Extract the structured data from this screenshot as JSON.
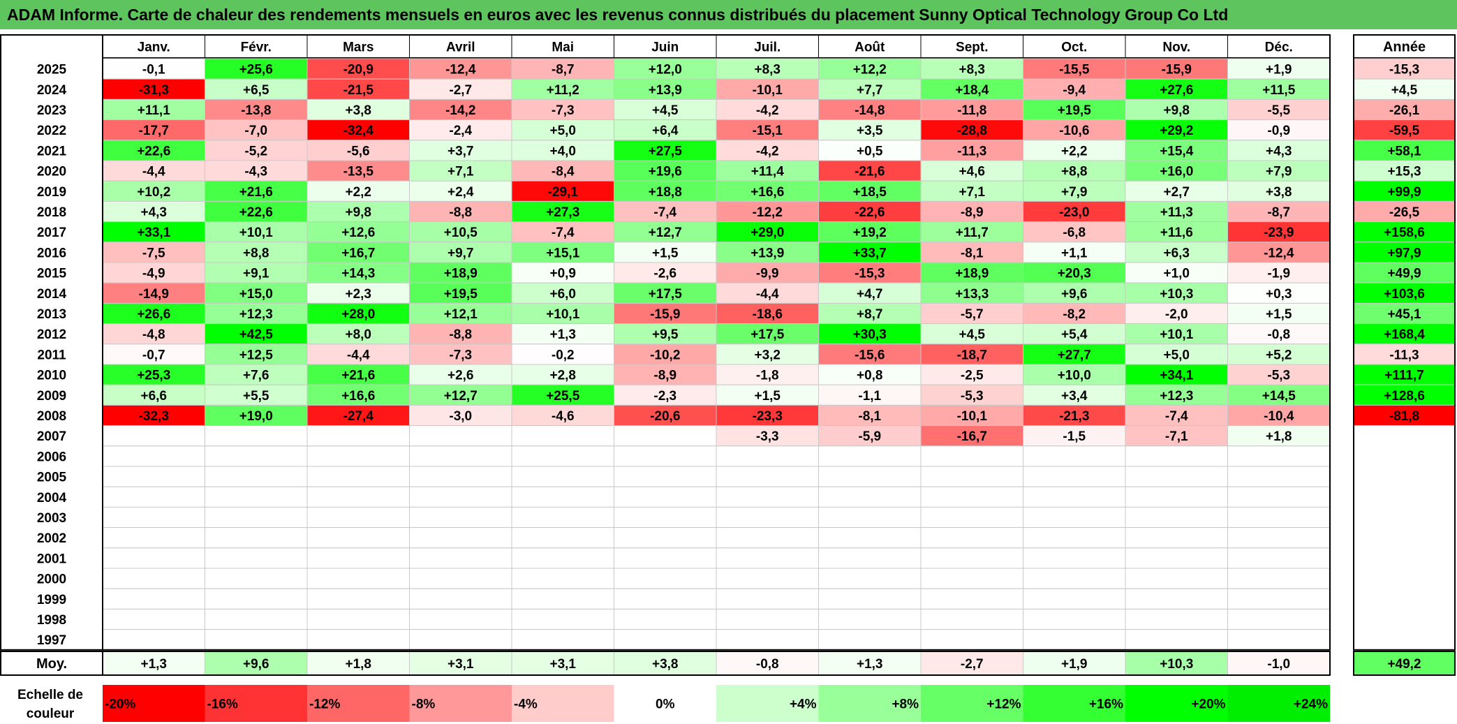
{
  "report_title": "ADAM Informe. Carte de chaleur des rendements mensuels en euros avec les revenus connus distribués du placement Sunny Optical Technology Group Co Ltd",
  "chart_data": {
    "type": "heatmap",
    "title": "ADAM Informe. Carte de chaleur des rendements mensuels en euros avec les revenus connus distribués du placement Sunny Optical Technology Group Co Ltd",
    "months": [
      "Janv.",
      "Févr.",
      "Mars",
      "Avril",
      "Mai",
      "Juin",
      "Juil.",
      "Août",
      "Sept.",
      "Oct.",
      "Nov.",
      "Déc."
    ],
    "year_header": "Année",
    "rows": [
      {
        "year": "2025",
        "values": [
          "-0,1",
          "+25,6",
          "-20,9",
          "-12,4",
          "-8,7",
          "+12,0",
          "+8,3",
          "+12,2",
          "+8,3",
          "-15,5",
          "-15,9",
          "+1,9"
        ],
        "annual": "-15,3"
      },
      {
        "year": "2024",
        "values": [
          "-31,3",
          "+6,5",
          "-21,5",
          "-2,7",
          "+11,2",
          "+13,9",
          "-10,1",
          "+7,7",
          "+18,4",
          "-9,4",
          "+27,6",
          "+11,5"
        ],
        "annual": "+4,5"
      },
      {
        "year": "2023",
        "values": [
          "+11,1",
          "-13,8",
          "+3,8",
          "-14,2",
          "-7,3",
          "+4,5",
          "-4,2",
          "-14,8",
          "-11,8",
          "+19,5",
          "+9,8",
          "-5,5"
        ],
        "annual": "-26,1"
      },
      {
        "year": "2022",
        "values": [
          "-17,7",
          "-7,0",
          "-32,4",
          "-2,4",
          "+5,0",
          "+6,4",
          "-15,1",
          "+3,5",
          "-28,8",
          "-10,6",
          "+29,2",
          "-0,9"
        ],
        "annual": "-59,5"
      },
      {
        "year": "2021",
        "values": [
          "+22,6",
          "-5,2",
          "-5,6",
          "+3,7",
          "+4,0",
          "+27,5",
          "-4,2",
          "+0,5",
          "-11,3",
          "+2,2",
          "+15,4",
          "+4,3"
        ],
        "annual": "+58,1"
      },
      {
        "year": "2020",
        "values": [
          "-4,4",
          "-4,3",
          "-13,5",
          "+7,1",
          "-8,4",
          "+19,6",
          "+11,4",
          "-21,6",
          "+4,6",
          "+8,8",
          "+16,0",
          "+7,9"
        ],
        "annual": "+15,3"
      },
      {
        "year": "2019",
        "values": [
          "+10,2",
          "+21,6",
          "+2,2",
          "+2,4",
          "-29,1",
          "+18,8",
          "+16,6",
          "+18,5",
          "+7,1",
          "+7,9",
          "+2,7",
          "+3,8"
        ],
        "annual": "+99,9"
      },
      {
        "year": "2018",
        "values": [
          "+4,3",
          "+22,6",
          "+9,8",
          "-8,8",
          "+27,3",
          "-7,4",
          "-12,2",
          "-22,6",
          "-8,9",
          "-23,0",
          "+11,3",
          "-8,7"
        ],
        "annual": "-26,5"
      },
      {
        "year": "2017",
        "values": [
          "+33,1",
          "+10,1",
          "+12,6",
          "+10,5",
          "-7,4",
          "+12,7",
          "+29,0",
          "+19,2",
          "+11,7",
          "-6,8",
          "+11,6",
          "-23,9"
        ],
        "annual": "+158,6"
      },
      {
        "year": "2016",
        "values": [
          "-7,5",
          "+8,8",
          "+16,7",
          "+9,7",
          "+15,1",
          "+1,5",
          "+13,9",
          "+33,7",
          "-8,1",
          "+1,1",
          "+6,3",
          "-12,4"
        ],
        "annual": "+97,9"
      },
      {
        "year": "2015",
        "values": [
          "-4,9",
          "+9,1",
          "+14,3",
          "+18,9",
          "+0,9",
          "-2,6",
          "-9,9",
          "-15,3",
          "+18,9",
          "+20,3",
          "+1,0",
          "-1,9"
        ],
        "annual": "+49,9"
      },
      {
        "year": "2014",
        "values": [
          "-14,9",
          "+15,0",
          "+2,3",
          "+19,5",
          "+6,0",
          "+17,5",
          "-4,4",
          "+4,7",
          "+13,3",
          "+9,6",
          "+10,3",
          "+0,3"
        ],
        "annual": "+103,6"
      },
      {
        "year": "2013",
        "values": [
          "+26,6",
          "+12,3",
          "+28,0",
          "+12,1",
          "+10,1",
          "-15,9",
          "-18,6",
          "+8,7",
          "-5,7",
          "-8,2",
          "-2,0",
          "+1,5"
        ],
        "annual": "+45,1"
      },
      {
        "year": "2012",
        "values": [
          "-4,8",
          "+42,5",
          "+8,0",
          "-8,8",
          "+1,3",
          "+9,5",
          "+17,5",
          "+30,3",
          "+4,5",
          "+5,4",
          "+10,1",
          "-0,8"
        ],
        "annual": "+168,4"
      },
      {
        "year": "2011",
        "values": [
          "-0,7",
          "+12,5",
          "-4,4",
          "-7,3",
          "-0,2",
          "-10,2",
          "+3,2",
          "-15,6",
          "-18,7",
          "+27,7",
          "+5,0",
          "+5,2"
        ],
        "annual": "-11,3"
      },
      {
        "year": "2010",
        "values": [
          "+25,3",
          "+7,6",
          "+21,6",
          "+2,6",
          "+2,8",
          "-8,9",
          "-1,8",
          "+0,8",
          "-2,5",
          "+10,0",
          "+34,1",
          "-5,3"
        ],
        "annual": "+111,7"
      },
      {
        "year": "2009",
        "values": [
          "+6,6",
          "+5,5",
          "+16,6",
          "+12,7",
          "+25,5",
          "-2,3",
          "+1,5",
          "-1,1",
          "-5,3",
          "+3,4",
          "+12,3",
          "+14,5"
        ],
        "annual": "+128,6"
      },
      {
        "year": "2008",
        "values": [
          "-32,3",
          "+19,0",
          "-27,4",
          "-3,0",
          "-4,6",
          "-20,6",
          "-23,3",
          "-8,1",
          "-10,1",
          "-21,3",
          "-7,4",
          "-10,4"
        ],
        "annual": "-81,8"
      },
      {
        "year": "2007",
        "values": [
          "",
          "",
          "",
          "",
          "",
          "",
          "-3,3",
          "-5,9",
          "-16,7",
          "-1,5",
          "-7,1",
          "+1,8"
        ],
        "annual": ""
      },
      {
        "year": "2006",
        "values": [
          "",
          "",
          "",
          "",
          "",
          "",
          "",
          "",
          "",
          "",
          "",
          ""
        ],
        "annual": ""
      },
      {
        "year": "2005",
        "values": [
          "",
          "",
          "",
          "",
          "",
          "",
          "",
          "",
          "",
          "",
          "",
          ""
        ],
        "annual": ""
      },
      {
        "year": "2004",
        "values": [
          "",
          "",
          "",
          "",
          "",
          "",
          "",
          "",
          "",
          "",
          "",
          ""
        ],
        "annual": ""
      },
      {
        "year": "2003",
        "values": [
          "",
          "",
          "",
          "",
          "",
          "",
          "",
          "",
          "",
          "",
          "",
          ""
        ],
        "annual": ""
      },
      {
        "year": "2002",
        "values": [
          "",
          "",
          "",
          "",
          "",
          "",
          "",
          "",
          "",
          "",
          "",
          ""
        ],
        "annual": ""
      },
      {
        "year": "2001",
        "values": [
          "",
          "",
          "",
          "",
          "",
          "",
          "",
          "",
          "",
          "",
          "",
          ""
        ],
        "annual": ""
      },
      {
        "year": "2000",
        "values": [
          "",
          "",
          "",
          "",
          "",
          "",
          "",
          "",
          "",
          "",
          "",
          ""
        ],
        "annual": ""
      },
      {
        "year": "1999",
        "values": [
          "",
          "",
          "",
          "",
          "",
          "",
          "",
          "",
          "",
          "",
          "",
          ""
        ],
        "annual": ""
      },
      {
        "year": "1998",
        "values": [
          "",
          "",
          "",
          "",
          "",
          "",
          "",
          "",
          "",
          "",
          "",
          ""
        ],
        "annual": ""
      },
      {
        "year": "1997",
        "values": [
          "",
          "",
          "",
          "",
          "",
          "",
          "",
          "",
          "",
          "",
          "",
          ""
        ],
        "annual": ""
      }
    ],
    "average": {
      "label": "Moy.",
      "values": [
        "+1,3",
        "+9,6",
        "+1,8",
        "+3,1",
        "+3,1",
        "+3,8",
        "-0,8",
        "+1,3",
        "-2,7",
        "+1,9",
        "+10,3",
        "-1,0"
      ],
      "annual": "+49,2"
    },
    "color_scale": {
      "label_line1": "Echelle de",
      "label_line2": "couleur",
      "steps": [
        {
          "label": "-20%",
          "color": "#ff0000"
        },
        {
          "label": "-16%",
          "color": "#ff3333"
        },
        {
          "label": "-12%",
          "color": "#ff6666"
        },
        {
          "label": "-8%",
          "color": "#ff9999"
        },
        {
          "label": "-4%",
          "color": "#ffcccc"
        },
        {
          "label": "0%",
          "color": "#ffffff"
        },
        {
          "label": "+4%",
          "color": "#ccffcc"
        },
        {
          "label": "+8%",
          "color": "#99ff99"
        },
        {
          "label": "+12%",
          "color": "#66ff66"
        },
        {
          "label": "+16%",
          "color": "#33ff33"
        },
        {
          "label": "+20%",
          "color": "#00ff00"
        },
        {
          "label": "+24%",
          "color": "#00ee00"
        }
      ]
    },
    "colors": {
      "title_background": "#5ec45e",
      "negative_max": "#ff0000",
      "positive_max": "#00ff00"
    }
  }
}
